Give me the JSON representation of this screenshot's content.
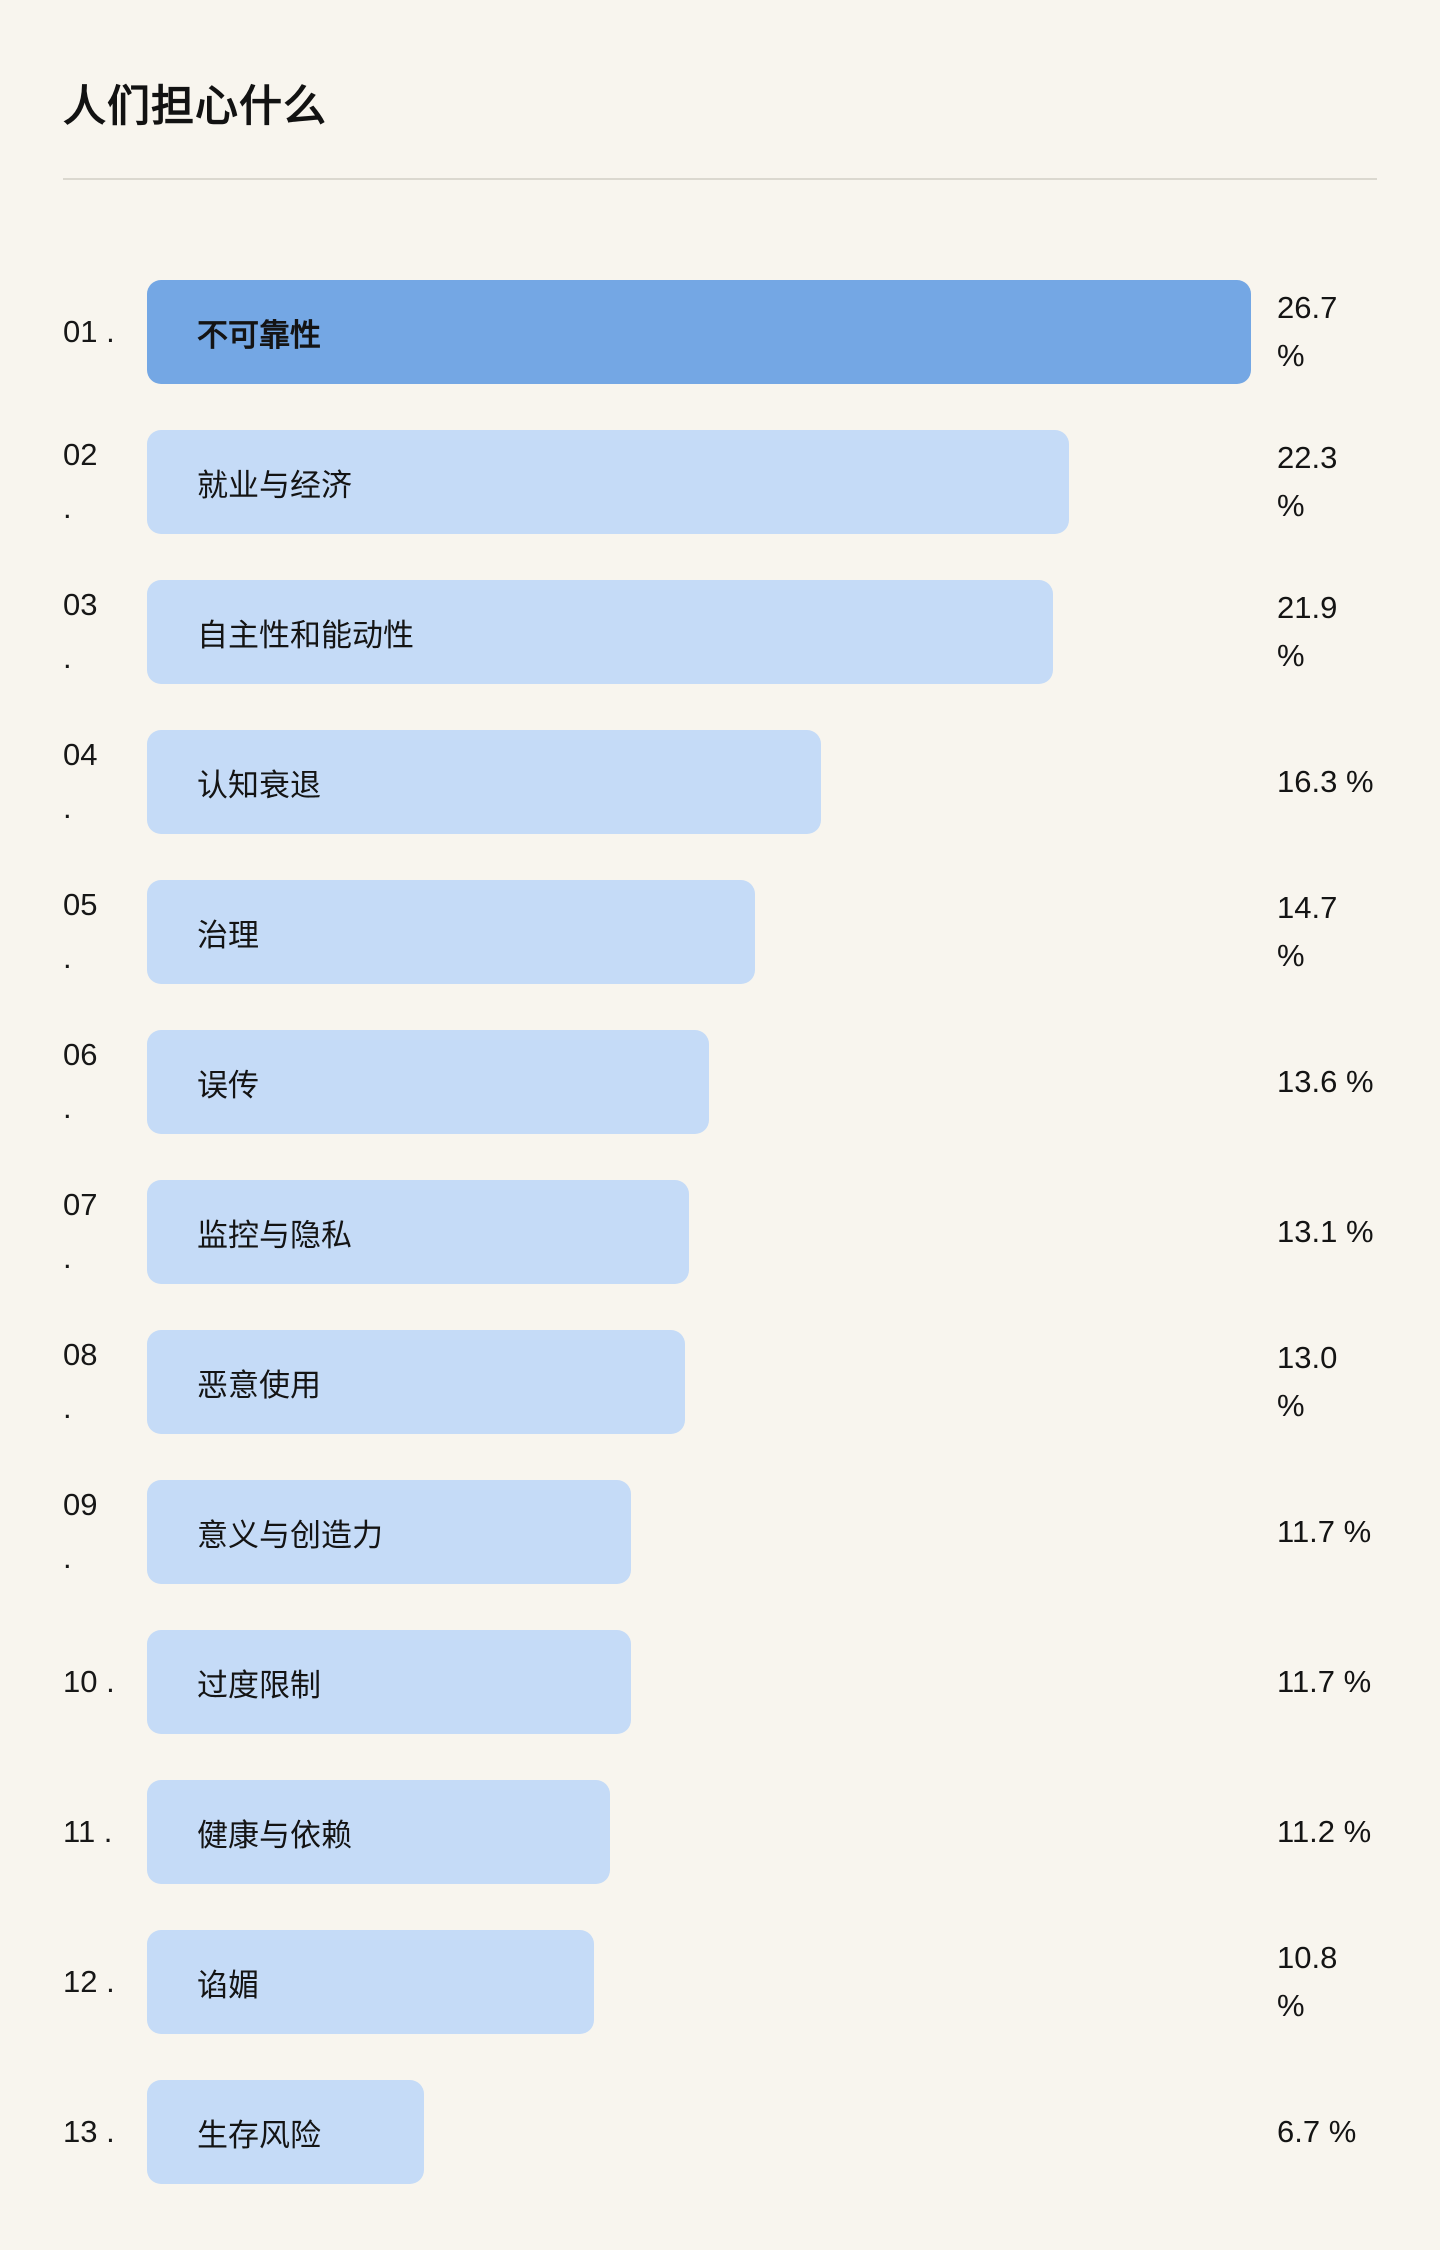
{
  "page": {
    "background_color": "#f8f5ee"
  },
  "header": {
    "title": "人们担心什么"
  },
  "chart_data": {
    "type": "bar",
    "orientation": "horizontal",
    "title": "人们担心什么",
    "value_unit": "%",
    "max_value": 26.7,
    "highlight_color": "#74a7e4",
    "bar_color": "#c5dbf7",
    "categories": [
      "不可靠性",
      "就业与经济",
      "自主性和能动性",
      "认知衰退",
      "治理",
      "误传",
      "监控与隐私",
      "恶意使用",
      "意义与创造力",
      "过度限制",
      "健康与依赖",
      "谄媚",
      "生存风险"
    ],
    "values": [
      26.7,
      22.3,
      21.9,
      16.3,
      14.7,
      13.6,
      13.1,
      13.0,
      11.7,
      11.7,
      11.2,
      10.8,
      6.7
    ],
    "items": [
      {
        "rank": "01 .",
        "label": "不可靠性",
        "value": 26.7,
        "value_label": "26.7\n%",
        "highlighted": true
      },
      {
        "rank": "02\n.",
        "label": "就业与经济",
        "value": 22.3,
        "value_label": "22.3\n%",
        "highlighted": false
      },
      {
        "rank": "03\n.",
        "label": "自主性和能动性",
        "value": 21.9,
        "value_label": "21.9\n%",
        "highlighted": false
      },
      {
        "rank": "04\n.",
        "label": "认知衰退",
        "value": 16.3,
        "value_label": "16.3 %",
        "highlighted": false
      },
      {
        "rank": "05\n.",
        "label": "治理",
        "value": 14.7,
        "value_label": "14.7\n%",
        "highlighted": false
      },
      {
        "rank": "06\n.",
        "label": "误传",
        "value": 13.6,
        "value_label": "13.6 %",
        "highlighted": false
      },
      {
        "rank": "07\n.",
        "label": "监控与隐私",
        "value": 13.1,
        "value_label": "13.1 %",
        "highlighted": false
      },
      {
        "rank": "08\n.",
        "label": "恶意使用",
        "value": 13.0,
        "value_label": "13.0\n%",
        "highlighted": false
      },
      {
        "rank": "09\n.",
        "label": "意义与创造力",
        "value": 11.7,
        "value_label": "11.7 %",
        "highlighted": false
      },
      {
        "rank": "10 .",
        "label": "过度限制",
        "value": 11.7,
        "value_label": "11.7 %",
        "highlighted": false
      },
      {
        "rank": "11 .",
        "label": "健康与依赖",
        "value": 11.2,
        "value_label": "11.2 %",
        "highlighted": false
      },
      {
        "rank": "12 .",
        "label": "谄媚",
        "value": 10.8,
        "value_label": "10.8\n%",
        "highlighted": false
      },
      {
        "rank": "13 .",
        "label": "生存风险",
        "value": 6.7,
        "value_label": "6.7 %",
        "highlighted": false
      }
    ]
  }
}
